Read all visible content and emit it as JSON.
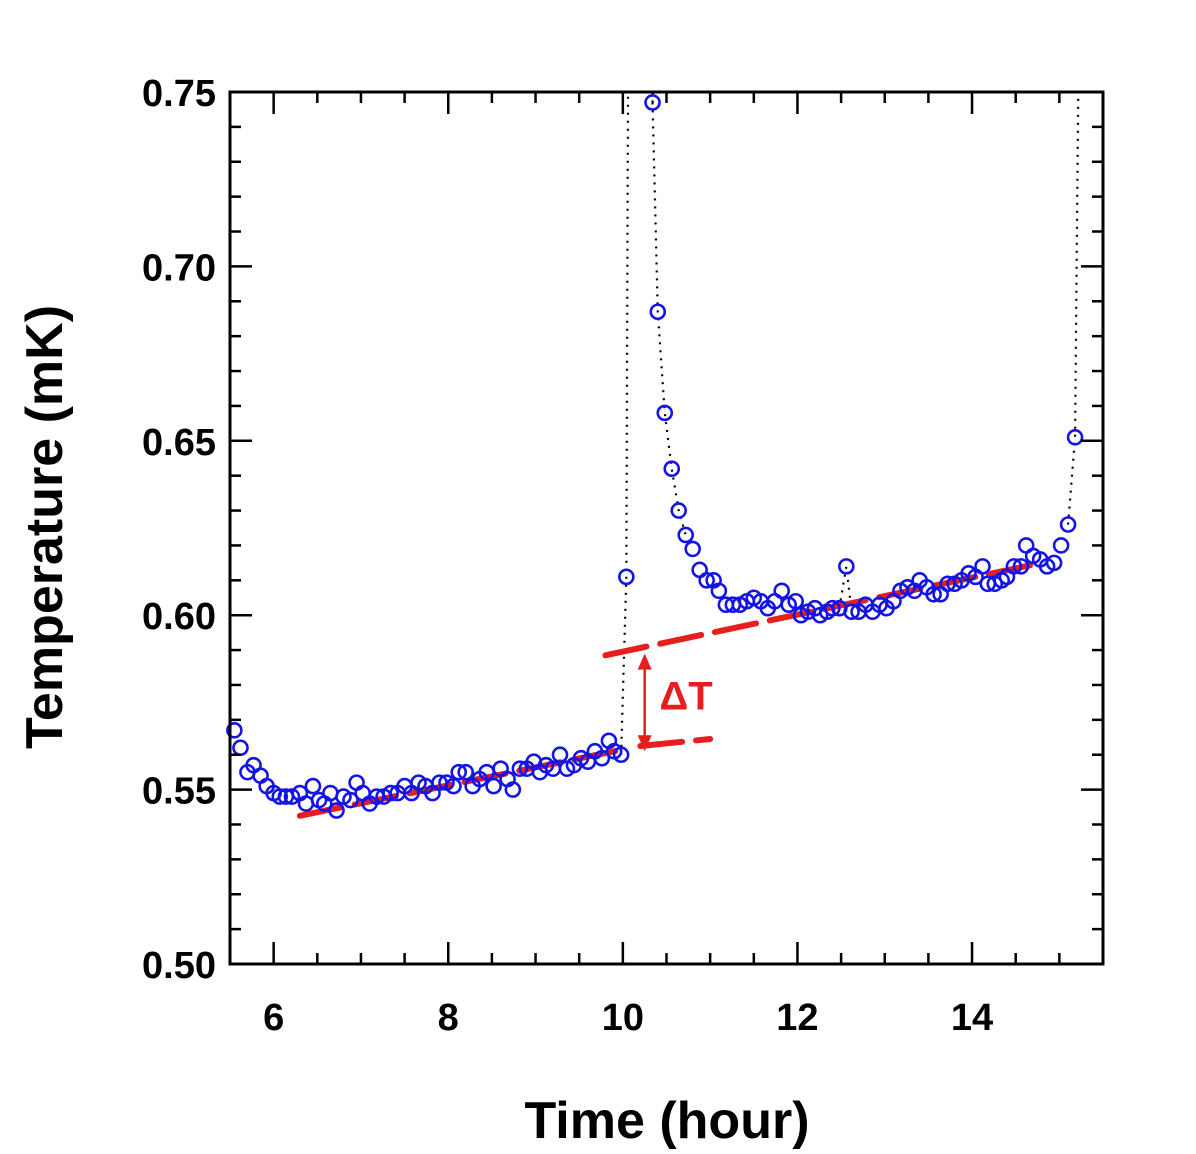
{
  "chart_data": {
    "type": "scatter",
    "title": "",
    "xlabel": "Time (hour)",
    "ylabel": "Temperature (mK)",
    "xlim": [
      5.5,
      15.5
    ],
    "ylim": [
      0.5,
      0.75
    ],
    "xticks": [
      6,
      8,
      10,
      12,
      14
    ],
    "yticks": [
      0.5,
      0.55,
      0.6,
      0.65,
      0.7,
      0.75
    ],
    "xtick_labels": [
      "6",
      "8",
      "10",
      "12",
      "14"
    ],
    "ytick_labels": [
      "0.50",
      "0.55",
      "0.60",
      "0.65",
      "0.70",
      "0.75"
    ],
    "colors": {
      "markers": "#1414e6",
      "fit": "#e61e1e",
      "axes": "#000000",
      "connector": "#000000"
    },
    "series": [
      {
        "name": "Temperature",
        "marker": "open-circle",
        "points": [
          [
            5.55,
            0.567
          ],
          [
            5.62,
            0.562
          ],
          [
            5.7,
            0.555
          ],
          [
            5.77,
            0.557
          ],
          [
            5.85,
            0.554
          ],
          [
            5.92,
            0.551
          ],
          [
            6.0,
            0.549
          ],
          [
            6.07,
            0.548
          ],
          [
            6.14,
            0.548
          ],
          [
            6.21,
            0.548
          ],
          [
            6.3,
            0.549
          ],
          [
            6.37,
            0.546
          ],
          [
            6.45,
            0.551
          ],
          [
            6.52,
            0.547
          ],
          [
            6.58,
            0.546
          ],
          [
            6.65,
            0.549
          ],
          [
            6.72,
            0.544
          ],
          [
            6.8,
            0.548
          ],
          [
            6.88,
            0.547
          ],
          [
            6.95,
            0.552
          ],
          [
            7.02,
            0.549
          ],
          [
            7.1,
            0.546
          ],
          [
            7.18,
            0.548
          ],
          [
            7.26,
            0.548
          ],
          [
            7.34,
            0.549
          ],
          [
            7.42,
            0.549
          ],
          [
            7.5,
            0.551
          ],
          [
            7.58,
            0.549
          ],
          [
            7.66,
            0.552
          ],
          [
            7.74,
            0.551
          ],
          [
            7.82,
            0.549
          ],
          [
            7.9,
            0.552
          ],
          [
            7.98,
            0.552
          ],
          [
            8.06,
            0.551
          ],
          [
            8.12,
            0.555
          ],
          [
            8.2,
            0.555
          ],
          [
            8.28,
            0.551
          ],
          [
            8.36,
            0.553
          ],
          [
            8.44,
            0.555
          ],
          [
            8.52,
            0.551
          ],
          [
            8.6,
            0.556
          ],
          [
            8.68,
            0.553
          ],
          [
            8.74,
            0.55
          ],
          [
            8.82,
            0.556
          ],
          [
            8.9,
            0.556
          ],
          [
            8.98,
            0.558
          ],
          [
            9.05,
            0.555
          ],
          [
            9.12,
            0.557
          ],
          [
            9.2,
            0.556
          ],
          [
            9.28,
            0.56
          ],
          [
            9.36,
            0.556
          ],
          [
            9.44,
            0.557
          ],
          [
            9.52,
            0.559
          ],
          [
            9.6,
            0.558
          ],
          [
            9.68,
            0.561
          ],
          [
            9.76,
            0.559
          ],
          [
            9.84,
            0.564
          ],
          [
            9.9,
            0.561
          ],
          [
            9.98,
            0.56
          ],
          [
            10.04,
            0.611
          ],
          [
            10.34,
            0.747
          ],
          [
            10.4,
            0.687
          ],
          [
            10.48,
            0.658
          ],
          [
            10.56,
            0.642
          ],
          [
            10.64,
            0.63
          ],
          [
            10.72,
            0.623
          ],
          [
            10.8,
            0.619
          ],
          [
            10.88,
            0.613
          ],
          [
            10.96,
            0.61
          ],
          [
            11.04,
            0.61
          ],
          [
            11.1,
            0.607
          ],
          [
            11.18,
            0.603
          ],
          [
            11.26,
            0.603
          ],
          [
            11.34,
            0.603
          ],
          [
            11.42,
            0.604
          ],
          [
            11.5,
            0.605
          ],
          [
            11.58,
            0.604
          ],
          [
            11.66,
            0.602
          ],
          [
            11.74,
            0.604
          ],
          [
            11.82,
            0.607
          ],
          [
            11.9,
            0.603
          ],
          [
            11.98,
            0.604
          ],
          [
            12.04,
            0.6
          ],
          [
            12.12,
            0.601
          ],
          [
            12.2,
            0.602
          ],
          [
            12.26,
            0.6
          ],
          [
            12.34,
            0.601
          ],
          [
            12.4,
            0.602
          ],
          [
            12.48,
            0.602
          ],
          [
            12.56,
            0.614
          ],
          [
            12.62,
            0.601
          ],
          [
            12.7,
            0.601
          ],
          [
            12.78,
            0.603
          ],
          [
            12.86,
            0.601
          ],
          [
            12.94,
            0.603
          ],
          [
            13.02,
            0.602
          ],
          [
            13.1,
            0.604
          ],
          [
            13.18,
            0.607
          ],
          [
            13.26,
            0.608
          ],
          [
            13.34,
            0.607
          ],
          [
            13.4,
            0.61
          ],
          [
            13.48,
            0.608
          ],
          [
            13.56,
            0.606
          ],
          [
            13.64,
            0.606
          ],
          [
            13.72,
            0.609
          ],
          [
            13.8,
            0.609
          ],
          [
            13.88,
            0.61
          ],
          [
            13.96,
            0.612
          ],
          [
            14.04,
            0.611
          ],
          [
            14.12,
            0.614
          ],
          [
            14.18,
            0.609
          ],
          [
            14.26,
            0.609
          ],
          [
            14.34,
            0.61
          ],
          [
            14.4,
            0.611
          ],
          [
            14.48,
            0.614
          ],
          [
            14.56,
            0.614
          ],
          [
            14.62,
            0.62
          ],
          [
            14.7,
            0.617
          ],
          [
            14.78,
            0.616
          ],
          [
            14.86,
            0.614
          ],
          [
            14.94,
            0.615
          ],
          [
            15.02,
            0.62
          ],
          [
            15.1,
            0.626
          ],
          [
            15.18,
            0.651
          ]
        ]
      }
    ],
    "connectors": [
      [
        [
          9.98,
          0.56
        ],
        [
          10.04,
          0.611
        ],
        [
          10.06,
          0.76
        ]
      ],
      [
        [
          10.34,
          0.747
        ],
        [
          10.36,
          0.76
        ]
      ],
      [
        [
          10.34,
          0.747
        ],
        [
          10.4,
          0.687
        ],
        [
          10.48,
          0.658
        ],
        [
          10.56,
          0.642
        ],
        [
          10.64,
          0.63
        ],
        [
          10.72,
          0.623
        ]
      ],
      [
        [
          12.48,
          0.602
        ],
        [
          12.56,
          0.614
        ],
        [
          12.62,
          0.601
        ]
      ],
      [
        [
          15.1,
          0.626
        ],
        [
          15.18,
          0.651
        ],
        [
          15.22,
          0.76
        ]
      ]
    ],
    "fit_lines": [
      {
        "name": "baseline-before",
        "x": [
          6.3,
          10.0
        ],
        "y": [
          0.5425,
          0.5615
        ]
      },
      {
        "name": "baseline-after",
        "x": [
          9.8,
          14.7
        ],
        "y": [
          0.5885,
          0.6145
        ]
      },
      {
        "name": "baseline-before-extension",
        "x": [
          10.2,
          11.0
        ],
        "y": [
          0.5625,
          0.5645
        ]
      }
    ],
    "annotations": [
      {
        "name": "delta-t",
        "text": "ΔT",
        "x": 10.25,
        "y_from": 0.561,
        "y_to": 0.589,
        "label_x": 10.42,
        "label_y": 0.577
      }
    ]
  }
}
